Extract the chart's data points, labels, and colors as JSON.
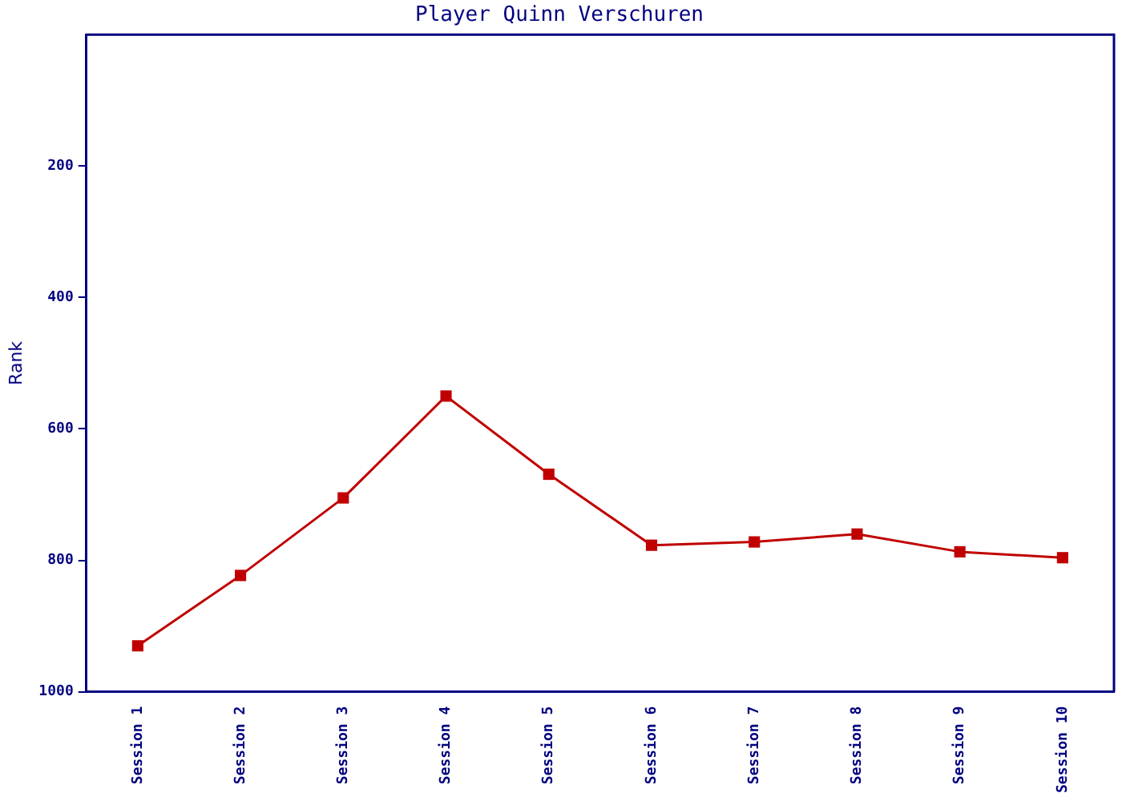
{
  "chart_data": {
    "type": "line",
    "title": "Player Quinn Verschuren",
    "ylabel": "Rank",
    "categories": [
      "Session 1",
      "Session 2",
      "Session 3",
      "Session 4",
      "Session 5",
      "Session 6",
      "Session 7",
      "Session 8",
      "Session 9",
      "Session 10"
    ],
    "series": [
      {
        "color": "#c00000",
        "values": [
          930,
          823,
          705,
          550,
          669,
          777,
          772,
          760,
          787,
          796
        ]
      }
    ],
    "ylim": [
      1000,
      0
    ],
    "yticks": [
      200,
      400,
      600,
      800,
      1000
    ],
    "grid": false,
    "legend": false,
    "marker": "square",
    "line_style": "solid"
  }
}
